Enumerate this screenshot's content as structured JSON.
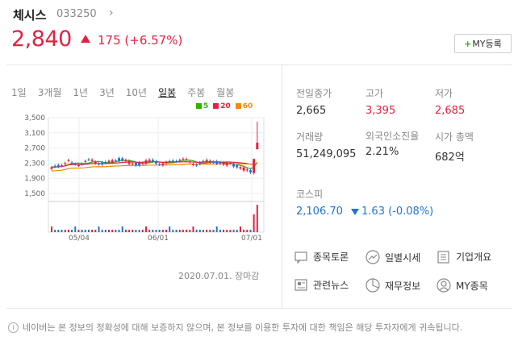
{
  "stock": {
    "name": "체시스",
    "code": "033250",
    "price": "2,840",
    "change": "175 (+6.57%)",
    "my_button": "MY등록"
  },
  "tabs": [
    "1일",
    "3개월",
    "1년",
    "3년",
    "10년",
    "일봉",
    "주봉",
    "월봉"
  ],
  "active_tab": "일봉",
  "legend": [
    {
      "label": "5",
      "color": "#2db400"
    },
    {
      "label": "20",
      "color": "#e12343"
    },
    {
      "label": "60",
      "color": "#f08c00"
    }
  ],
  "chart_data": {
    "type": "candlestick",
    "y_ticks": [
      "3,500",
      "3,100",
      "2,700",
      "2,300",
      "1,900",
      "1,500"
    ],
    "ylim": [
      1500,
      3500
    ],
    "x_ticks": [
      "05/04",
      "06/01",
      "07/01"
    ],
    "grid": true,
    "recent_candles": [
      {
        "open": 2040,
        "high": 2420,
        "low": 2000,
        "close": 2410
      },
      {
        "open": 2665,
        "high": 3395,
        "low": 2685,
        "close": 2840
      }
    ],
    "volume_spike": "2020.07.01"
  },
  "chart_date": "2020.07.01. 장마감",
  "stats": {
    "prev_close_label": "전일종가",
    "prev_close": "2,665",
    "high_label": "고가",
    "high": "3,395",
    "low_label": "저가",
    "low": "2,685",
    "volume_label": "거래량",
    "volume": "51,249,095",
    "foreign_label": "외국인소진율",
    "foreign": "2.21%",
    "mcap_label": "시가 총액",
    "mcap": "682억",
    "kospi_label": "코스피",
    "kospi_value": "2,106.70",
    "kospi_change": "1.63 (-0.08%)"
  },
  "menu": [
    {
      "label": "종목토론",
      "icon": "chat-icon"
    },
    {
      "label": "일별시세",
      "icon": "trend-icon"
    },
    {
      "label": "기업개요",
      "icon": "list-icon"
    },
    {
      "label": "관련뉴스",
      "icon": "news-icon"
    },
    {
      "label": "재무정보",
      "icon": "pie-icon"
    },
    {
      "label": "MY종목",
      "icon": "user-icon"
    }
  ],
  "footer": "네이버는 본 정보의 정확성에 대해 보증하지 않으며, 본 정보를 이용한 투자에 대한 책임은 해당 투자자에게 귀속됩니다."
}
